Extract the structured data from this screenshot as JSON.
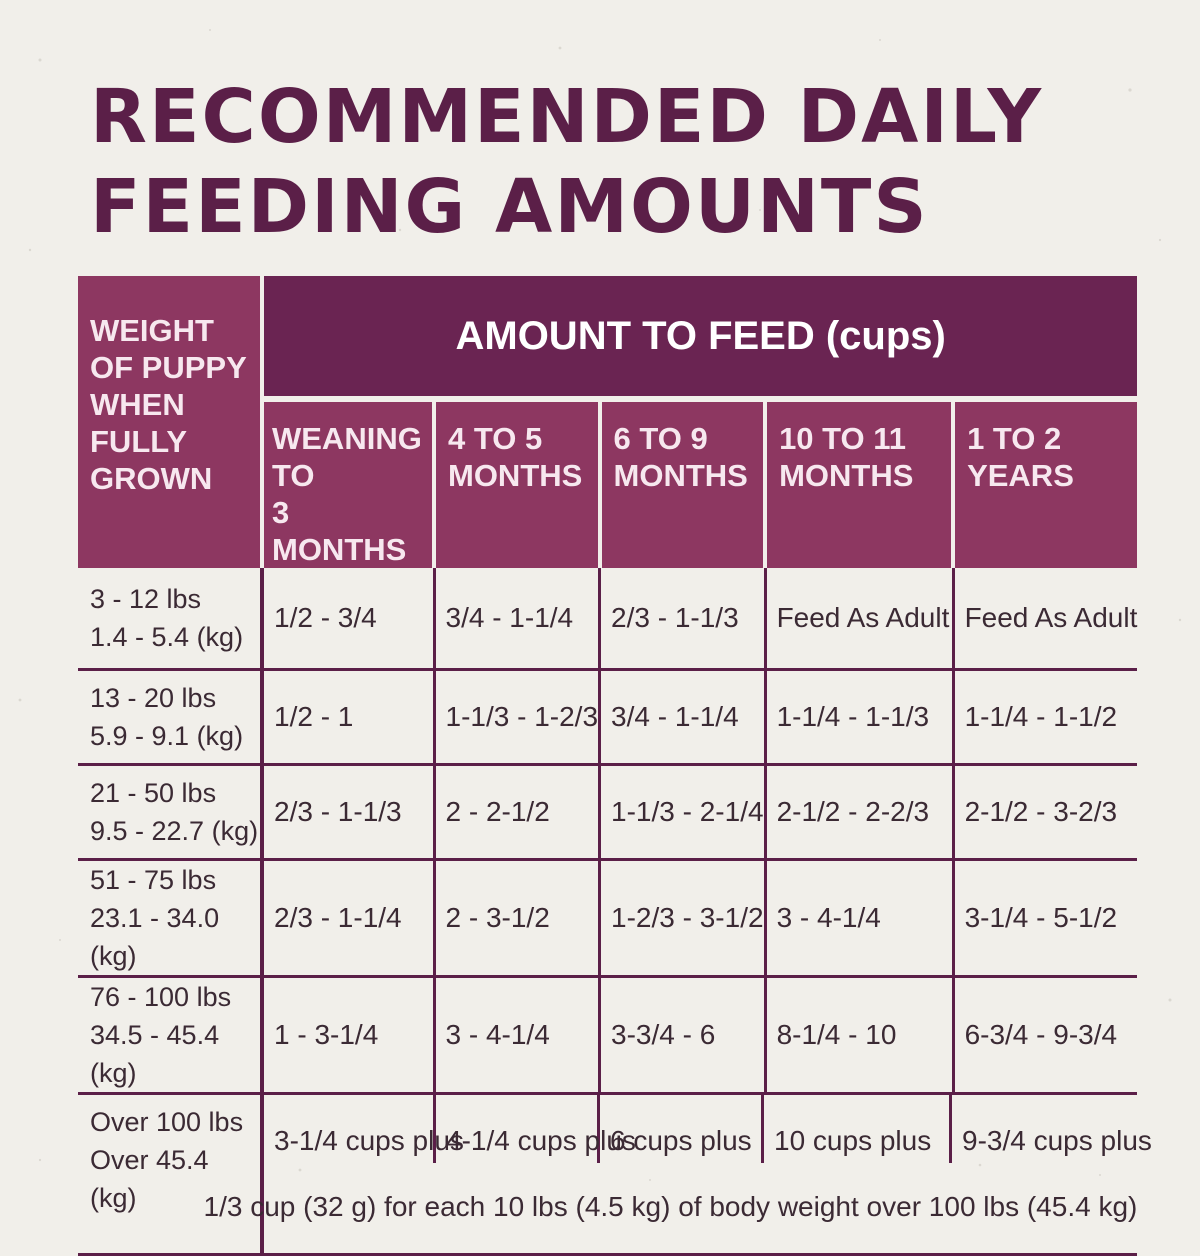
{
  "title": {
    "line1": "RECOMMENDED DAILY",
    "line2": "FEEDING AMOUNTS"
  },
  "table": {
    "weight_header": "WEIGHT\nOF PUPPY\nWHEN\nFULLY\nGROWN",
    "amount_header": "AMOUNT TO FEED (cups)",
    "age_headers": [
      "WEANING TO\n3 MONTHS",
      "4 TO 5\nMONTHS",
      "6 TO 9\nMONTHS",
      "10 TO 11\nMONTHS",
      "1 TO 2\nYEARS"
    ],
    "rows": [
      {
        "weight_lbs": "3 - 12 lbs",
        "weight_kg": "1.4 - 5.4 (kg)",
        "values": [
          "1/2 - 3/4",
          "3/4 - 1-1/4",
          "2/3 - 1-1/3",
          "Feed As Adult",
          "Feed As Adult"
        ]
      },
      {
        "weight_lbs": "13 - 20 lbs",
        "weight_kg": "5.9 - 9.1 (kg)",
        "values": [
          "1/2 - 1",
          "1-1/3 - 1-2/3",
          "3/4 - 1-1/4",
          "1-1/4 - 1-1/3",
          "1-1/4 - 1-1/2"
        ]
      },
      {
        "weight_lbs": "21 - 50 lbs",
        "weight_kg": "9.5 - 22.7 (kg)",
        "values": [
          "2/3 - 1-1/3",
          "2 - 2-1/2",
          "1-1/3 - 2-1/4",
          "2-1/2 - 2-2/3",
          "2-1/2 - 3-2/3"
        ]
      },
      {
        "weight_lbs": "51 - 75 lbs",
        "weight_kg": "23.1 - 34.0 (kg)",
        "values": [
          "2/3 - 1-1/4",
          "2 - 3-1/2",
          "1-2/3 - 3-1/2",
          "3 - 4-1/4",
          "3-1/4 - 5-1/2"
        ]
      },
      {
        "weight_lbs": "76 - 100 lbs",
        "weight_kg": "34.5 - 45.4 (kg)",
        "values": [
          "1 - 3-1/4",
          "3 - 4-1/4",
          "3-3/4 - 6",
          "8-1/4 - 10",
          "6-3/4 - 9-3/4"
        ]
      }
    ],
    "over_row": {
      "weight_lbs": "Over 100 lbs",
      "weight_kg": "Over 45.4 (kg)",
      "values": [
        "3-1/4 cups plus",
        "4-1/4 cups plus",
        "6 cups plus",
        "10 cups plus",
        "9-3/4 cups plus"
      ],
      "footnote": "1/3 cup (32 g) for each 10 lbs (4.5 kg) of body weight over 100 lbs (45.4 kg)"
    }
  },
  "colors": {
    "dark_plum": "#6a2452",
    "header_plum": "#8d3761",
    "title_plum": "#5b1f48",
    "background": "#f1efea"
  }
}
